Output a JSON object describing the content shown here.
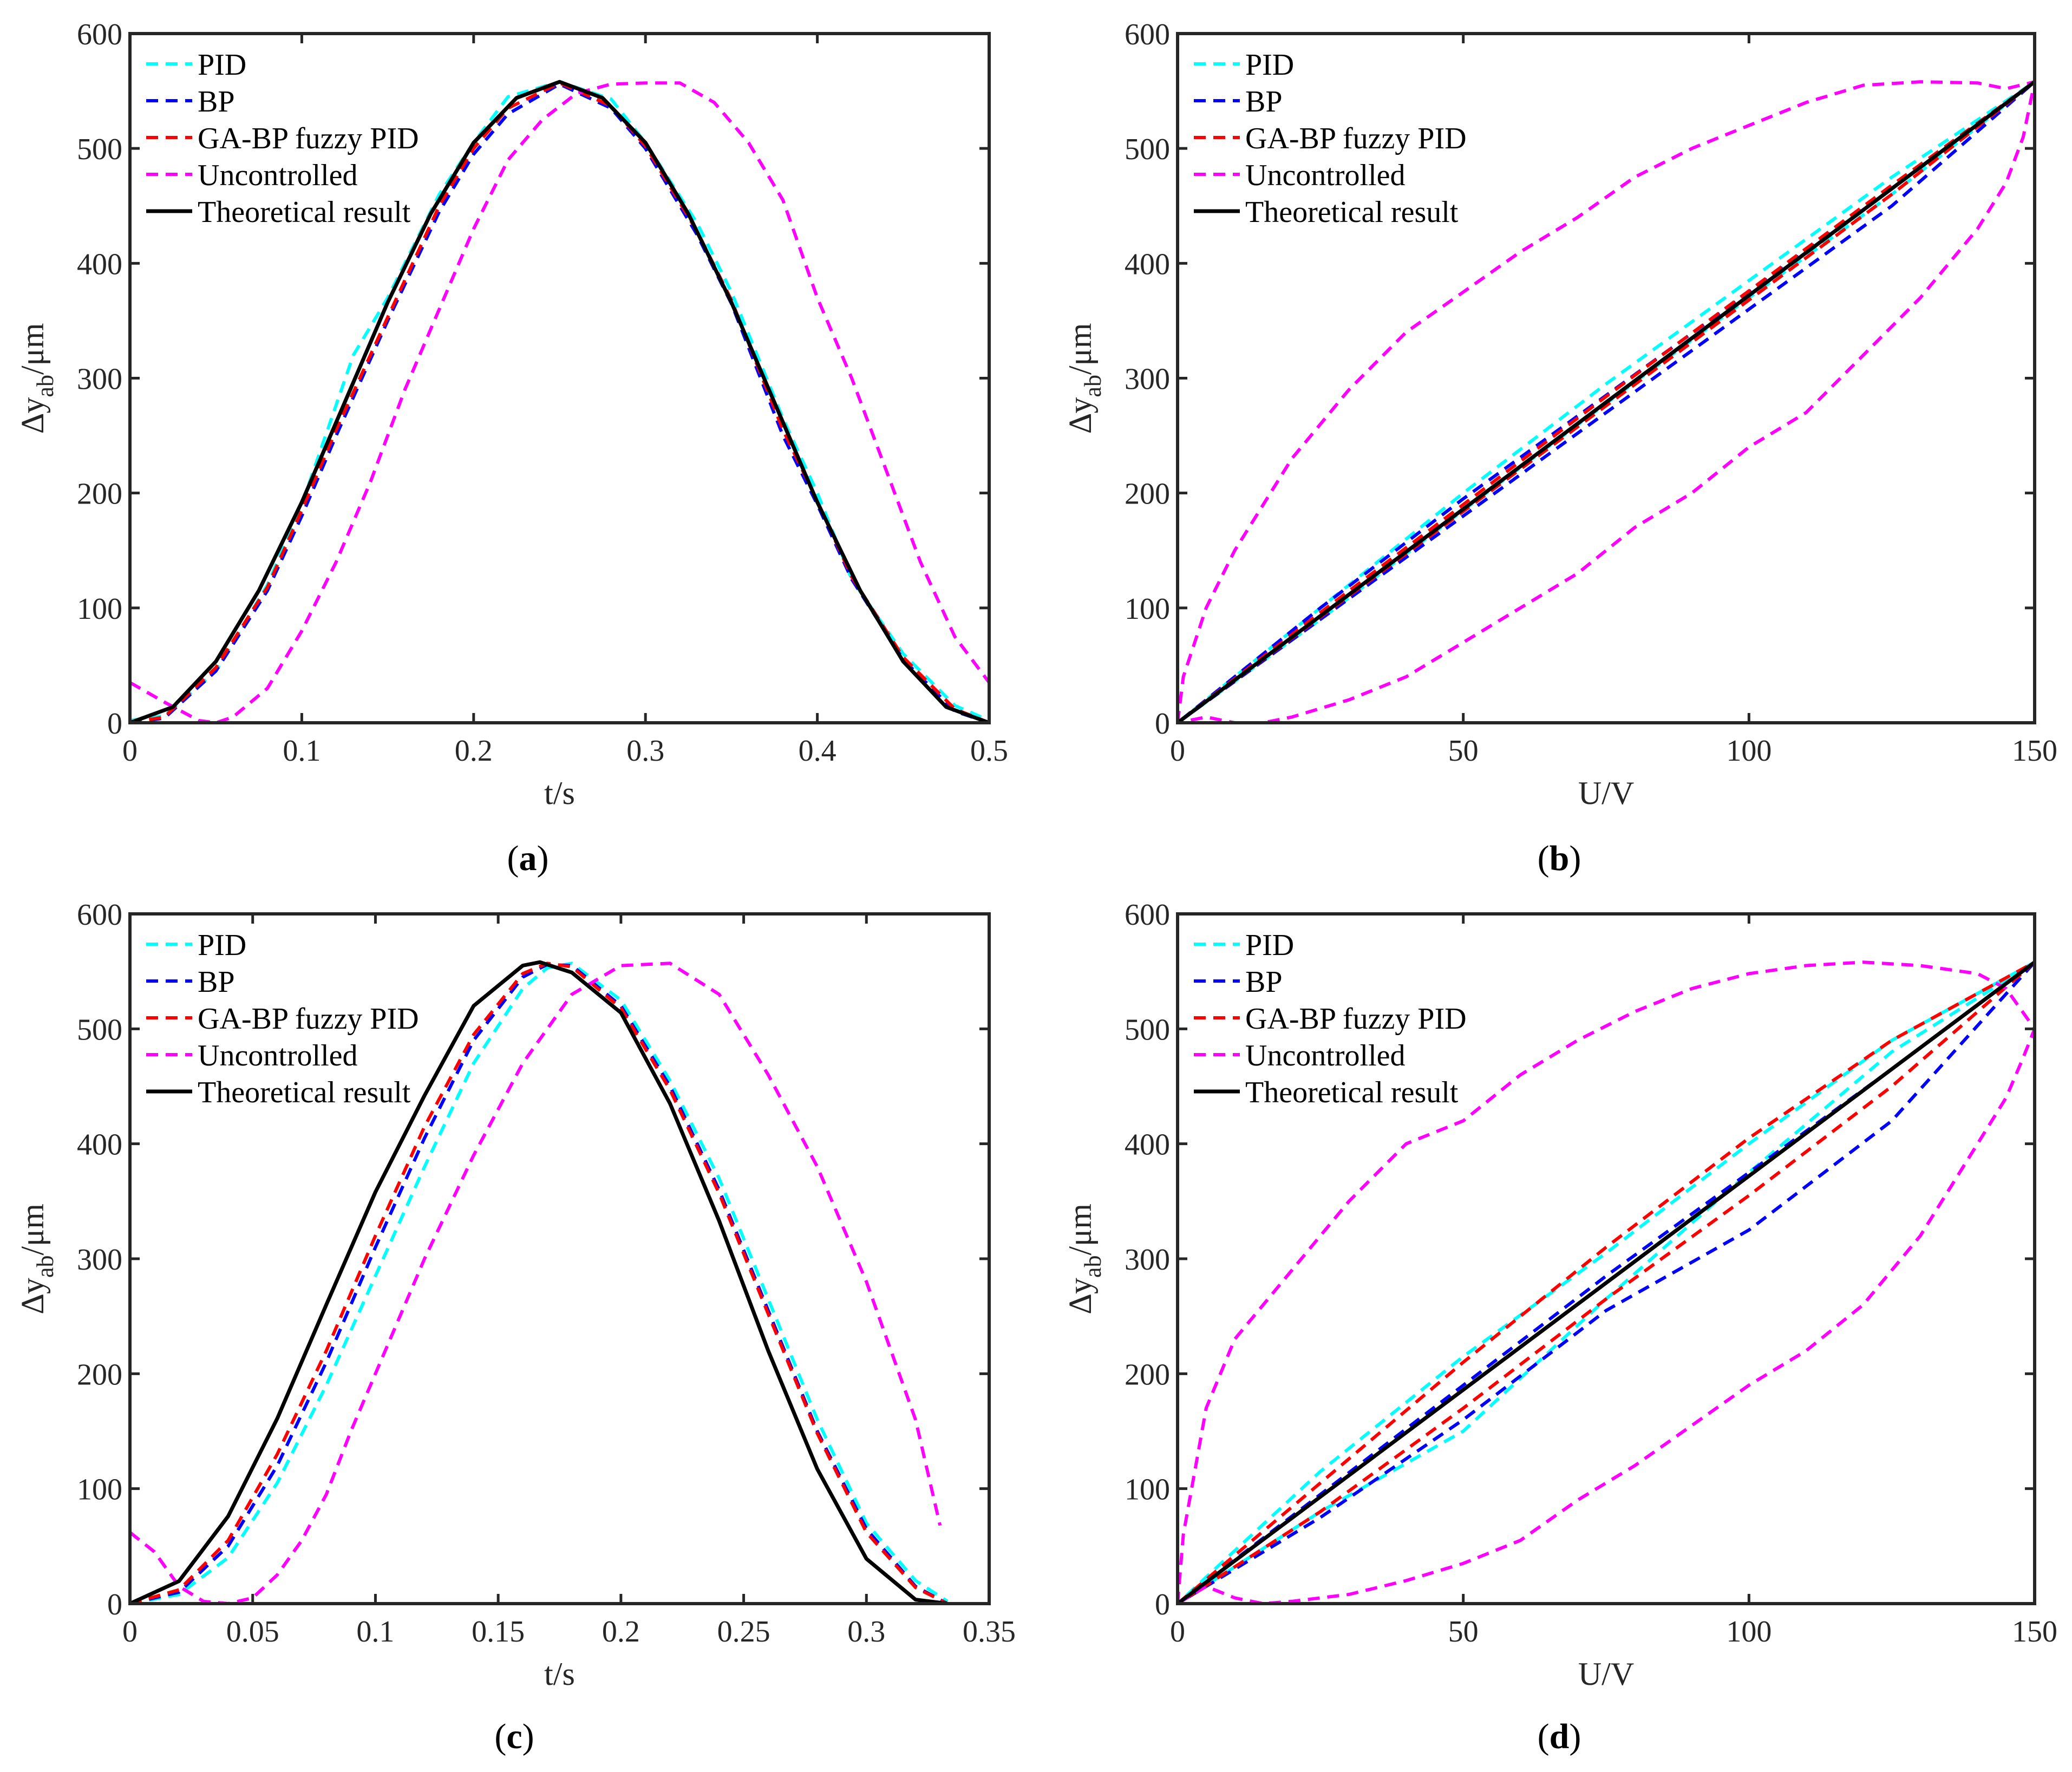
{
  "figure": {
    "panel_labels": [
      {
        "open": "(",
        "letter": "a",
        "close": ")"
      },
      {
        "open": "(",
        "letter": "b",
        "close": ")"
      },
      {
        "open": "(",
        "letter": "c",
        "close": ")"
      },
      {
        "open": "(",
        "letter": "d",
        "close": ")"
      }
    ]
  },
  "colors": {
    "pid": "#00FFFF",
    "bp": "#0000FF",
    "gabp": "#FF0000",
    "uncontrolled": "#FF00FF",
    "theoretical": "#000000"
  },
  "chart_data": [
    {
      "type": "line",
      "panel": "a",
      "xlabel": "t/s",
      "ylabel": {
        "prefix": "∆y",
        "sub": "ab",
        "suffix": "/μm"
      },
      "xlim": [
        0,
        0.5
      ],
      "ylim": [
        0,
        600
      ],
      "xticks": [
        0,
        0.1,
        0.2,
        0.3,
        0.4,
        0.5
      ],
      "xtick_labels": [
        "0",
        "0.1",
        "0.2",
        "0.3",
        "0.4",
        "0.5"
      ],
      "yticks": [
        0,
        100,
        200,
        300,
        400,
        500,
        600
      ],
      "ytick_labels": [
        "0",
        "100",
        "200",
        "300",
        "400",
        "500",
        "600"
      ],
      "legend": "top-left",
      "series": [
        {
          "name": "PID",
          "color_key": "pid",
          "style": "dashed",
          "x": [
            0,
            0.02,
            0.05,
            0.08,
            0.1,
            0.13,
            0.15,
            0.18,
            0.2,
            0.22,
            0.25,
            0.28,
            0.3,
            0.33,
            0.35,
            0.38,
            0.4,
            0.42,
            0.45,
            0.48,
            0.5
          ],
          "y": [
            2,
            6,
            45,
            120,
            190,
            320,
            370,
            460,
            505,
            545,
            558,
            543,
            505,
            435,
            375,
            265,
            200,
            125,
            60,
            15,
            2
          ]
        },
        {
          "name": "BP",
          "color_key": "bp",
          "style": "dashed",
          "x": [
            0,
            0.02,
            0.05,
            0.08,
            0.1,
            0.12,
            0.15,
            0.18,
            0.2,
            0.22,
            0.25,
            0.28,
            0.3,
            0.33,
            0.35,
            0.38,
            0.4,
            0.42,
            0.45,
            0.48,
            0.5
          ],
          "y": [
            0,
            4,
            45,
            115,
            180,
            250,
            350,
            445,
            495,
            530,
            556,
            535,
            500,
            425,
            365,
            250,
            190,
            125,
            55,
            10,
            0
          ]
        },
        {
          "name": "GA-BP fuzzy PID",
          "color_key": "gabp",
          "style": "dashed",
          "x": [
            0,
            0.02,
            0.05,
            0.08,
            0.1,
            0.12,
            0.15,
            0.18,
            0.2,
            0.22,
            0.25,
            0.28,
            0.3,
            0.33,
            0.35,
            0.38,
            0.4,
            0.42,
            0.45,
            0.48,
            0.5
          ],
          "y": [
            0,
            5,
            48,
            118,
            185,
            255,
            353,
            450,
            500,
            535,
            557,
            537,
            502,
            428,
            368,
            255,
            193,
            127,
            57,
            12,
            0
          ]
        },
        {
          "name": "Uncontrolled",
          "color_key": "uncontrolled",
          "style": "dashed",
          "x": [
            0,
            0.02,
            0.04,
            0.05,
            0.06,
            0.08,
            0.1,
            0.12,
            0.14,
            0.16,
            0.18,
            0.2,
            0.22,
            0.24,
            0.26,
            0.28,
            0.3,
            0.32,
            0.34,
            0.36,
            0.38,
            0.4,
            0.42,
            0.44,
            0.46,
            0.48,
            0.5
          ],
          "y": [
            35,
            18,
            2,
            0,
            5,
            30,
            80,
            140,
            210,
            290,
            360,
            430,
            490,
            525,
            548,
            556,
            557,
            557,
            540,
            505,
            455,
            370,
            300,
            220,
            140,
            75,
            35
          ]
        },
        {
          "name": "Theoretical result",
          "color_key": "theoretical",
          "style": "solid",
          "x": [
            0,
            0.025,
            0.05,
            0.075,
            0.1,
            0.125,
            0.15,
            0.175,
            0.2,
            0.225,
            0.25,
            0.275,
            0.3,
            0.325,
            0.35,
            0.375,
            0.4,
            0.425,
            0.45,
            0.475,
            0.5
          ],
          "y": [
            0,
            13.7,
            53.3,
            115,
            192,
            279,
            366,
            443,
            505,
            544,
            558,
            544,
            505,
            443,
            366,
            279,
            192,
            115,
            53.3,
            13.7,
            0
          ]
        }
      ]
    },
    {
      "type": "line",
      "panel": "b",
      "xlabel": "U/V",
      "ylabel": {
        "prefix": "∆y",
        "sub": "ab",
        "suffix": "/μm"
      },
      "xlim": [
        0,
        150
      ],
      "ylim": [
        0,
        600
      ],
      "xticks": [
        0,
        50,
        100,
        150
      ],
      "xtick_labels": [
        "0",
        "50",
        "100",
        "150"
      ],
      "yticks": [
        0,
        100,
        200,
        300,
        400,
        500,
        600
      ],
      "ytick_labels": [
        "0",
        "100",
        "200",
        "300",
        "400",
        "500",
        "600"
      ],
      "legend": "top-left",
      "series": [
        {
          "name": "PID",
          "color_key": "pid",
          "style": "dashed",
          "x": [
            0,
            25,
            50,
            75,
            100,
            125,
            150,
            125,
            100,
            75,
            50,
            25,
            0
          ],
          "y": [
            0,
            100,
            200,
            295,
            385,
            475,
            558,
            460,
            370,
            278,
            185,
            90,
            0
          ]
        },
        {
          "name": "BP",
          "color_key": "bp",
          "style": "dashed",
          "x": [
            0,
            25,
            50,
            75,
            100,
            125,
            150,
            125,
            100,
            75,
            50,
            25,
            0
          ],
          "y": [
            0,
            90,
            180,
            270,
            360,
            450,
            558,
            465,
            375,
            285,
            195,
            100,
            0
          ]
        },
        {
          "name": "GA-BP fuzzy PID",
          "color_key": "gabp",
          "style": "dashed",
          "x": [
            0,
            25,
            50,
            75,
            100,
            125,
            150,
            125,
            100,
            75,
            50,
            25,
            0
          ],
          "y": [
            0,
            92,
            184,
            276,
            368,
            460,
            558,
            468,
            376,
            284,
            190,
            96,
            0
          ]
        },
        {
          "name": "Uncontrolled",
          "color_key": "uncontrolled",
          "style": "dashed",
          "x": [
            0,
            1,
            5,
            10,
            20,
            30,
            40,
            50,
            60,
            70,
            80,
            90,
            100,
            110,
            120,
            130,
            140,
            145,
            150,
            148,
            145,
            140,
            130,
            120,
            110,
            100,
            90,
            80,
            70,
            60,
            50,
            40,
            30,
            20,
            15,
            10,
            5,
            0
          ],
          "y": [
            0,
            40,
            100,
            150,
            230,
            290,
            340,
            375,
            410,
            440,
            475,
            500,
            520,
            540,
            555,
            558,
            557,
            552,
            558,
            510,
            470,
            430,
            370,
            320,
            270,
            240,
            200,
            170,
            130,
            100,
            70,
            40,
            20,
            5,
            0,
            0,
            5,
            0
          ]
        },
        {
          "name": "Theoretical result",
          "color_key": "theoretical",
          "style": "solid",
          "x": [
            0,
            150
          ],
          "y": [
            0,
            558
          ]
        }
      ]
    },
    {
      "type": "line",
      "panel": "c",
      "xlabel": "t/s",
      "ylabel": {
        "prefix": "∆y",
        "sub": "ab",
        "suffix": "/μm"
      },
      "xlim": [
        0,
        0.35
      ],
      "ylim": [
        0,
        600
      ],
      "xticks": [
        0,
        0.05,
        0.1,
        0.15,
        0.2,
        0.25,
        0.3,
        0.35
      ],
      "xtick_labels": [
        "0",
        "0.05",
        "0.1",
        "0.15",
        "0.2",
        "0.25",
        "0.3",
        "0.35"
      ],
      "yticks": [
        0,
        100,
        200,
        300,
        400,
        500,
        600
      ],
      "ytick_labels": [
        "0",
        "100",
        "200",
        "300",
        "400",
        "500",
        "600"
      ],
      "legend": "top-left",
      "series": [
        {
          "name": "PID",
          "color_key": "pid",
          "style": "dashed",
          "x": [
            0,
            0.02,
            0.04,
            0.06,
            0.08,
            0.1,
            0.12,
            0.14,
            0.16,
            0.17,
            0.18,
            0.2,
            0.22,
            0.24,
            0.26,
            0.28,
            0.3,
            0.32,
            0.333
          ],
          "y": [
            0,
            8,
            40,
            105,
            190,
            285,
            380,
            470,
            535,
            553,
            557,
            525,
            455,
            370,
            265,
            160,
            70,
            20,
            2
          ]
        },
        {
          "name": "BP",
          "color_key": "bp",
          "style": "dashed",
          "x": [
            0,
            0.02,
            0.04,
            0.06,
            0.08,
            0.1,
            0.12,
            0.14,
            0.16,
            0.17,
            0.18,
            0.2,
            0.22,
            0.24,
            0.26,
            0.28,
            0.3,
            0.32,
            0.333
          ],
          "y": [
            0,
            10,
            50,
            120,
            210,
            310,
            405,
            490,
            545,
            556,
            555,
            520,
            450,
            360,
            255,
            150,
            65,
            15,
            0
          ]
        },
        {
          "name": "GA-BP fuzzy PID",
          "color_key": "gabp",
          "style": "dashed",
          "x": [
            0,
            0.02,
            0.04,
            0.06,
            0.08,
            0.1,
            0.12,
            0.14,
            0.16,
            0.17,
            0.18,
            0.2,
            0.22,
            0.24,
            0.26,
            0.28,
            0.3,
            0.32,
            0.333
          ],
          "y": [
            0,
            12,
            55,
            130,
            220,
            320,
            415,
            495,
            548,
            557,
            554,
            518,
            447,
            357,
            252,
            148,
            62,
            14,
            0
          ]
        },
        {
          "name": "Uncontrolled",
          "color_key": "uncontrolled",
          "style": "dashed",
          "x": [
            0,
            0.01,
            0.02,
            0.03,
            0.04,
            0.05,
            0.06,
            0.07,
            0.08,
            0.09,
            0.1,
            0.12,
            0.14,
            0.16,
            0.18,
            0.2,
            0.22,
            0.24,
            0.26,
            0.28,
            0.3,
            0.32,
            0.33
          ],
          "y": [
            62,
            45,
            15,
            2,
            0,
            5,
            25,
            55,
            95,
            150,
            200,
            300,
            390,
            470,
            530,
            555,
            557,
            530,
            460,
            380,
            280,
            160,
            68
          ]
        },
        {
          "name": "Theoretical result",
          "color_key": "theoretical",
          "style": "solid",
          "x": [
            0,
            0.02,
            0.04,
            0.06,
            0.08,
            0.1,
            0.12,
            0.14,
            0.16,
            0.167,
            0.18,
            0.2,
            0.22,
            0.24,
            0.26,
            0.28,
            0.3,
            0.32,
            0.333
          ],
          "y": [
            0,
            19.6,
            76,
            161,
            260,
            358,
            442,
            520,
            555,
            558,
            549,
            514,
            435,
            333,
            220,
            117,
            39,
            3.5,
            0
          ]
        }
      ]
    },
    {
      "type": "line",
      "panel": "d",
      "xlabel": "U/V",
      "ylabel": {
        "prefix": "∆y",
        "sub": "ab",
        "suffix": "/μm"
      },
      "xlim": [
        0,
        150
      ],
      "ylim": [
        0,
        600
      ],
      "xticks": [
        0,
        50,
        100,
        150
      ],
      "xtick_labels": [
        "0",
        "50",
        "100",
        "150"
      ],
      "yticks": [
        0,
        100,
        200,
        300,
        400,
        500,
        600
      ],
      "ytick_labels": [
        "0",
        "100",
        "200",
        "300",
        "400",
        "500",
        "600"
      ],
      "legend": "top-left",
      "series": [
        {
          "name": "PID",
          "color_key": "pid",
          "style": "dashed",
          "x": [
            0,
            25,
            50,
            75,
            100,
            125,
            150,
            125,
            100,
            75,
            50,
            25,
            0
          ],
          "y": [
            0,
            80,
            150,
            265,
            375,
            480,
            558,
            490,
            400,
            305,
            215,
            115,
            0
          ]
        },
        {
          "name": "BP",
          "color_key": "bp",
          "style": "dashed",
          "x": [
            0,
            25,
            50,
            75,
            100,
            125,
            150,
            125,
            100,
            75,
            50,
            25,
            0
          ],
          "y": [
            0,
            95,
            190,
            285,
            375,
            465,
            558,
            420,
            325,
            255,
            160,
            75,
            0
          ]
        },
        {
          "name": "GA-BP fuzzy PID",
          "color_key": "gabp",
          "style": "dashed",
          "x": [
            0,
            25,
            50,
            75,
            100,
            125,
            150,
            125,
            100,
            75,
            50,
            25,
            0
          ],
          "y": [
            0,
            105,
            210,
            310,
            405,
            490,
            558,
            450,
            355,
            265,
            170,
            80,
            0
          ]
        },
        {
          "name": "Uncontrolled",
          "color_key": "uncontrolled",
          "style": "dashed",
          "x": [
            0,
            1,
            5,
            10,
            20,
            30,
            40,
            50,
            60,
            70,
            80,
            90,
            100,
            110,
            120,
            130,
            140,
            145,
            150,
            148,
            145,
            140,
            130,
            120,
            110,
            100,
            90,
            80,
            70,
            60,
            50,
            40,
            30,
            20,
            15,
            10,
            5,
            0
          ],
          "y": [
            0,
            60,
            170,
            230,
            290,
            350,
            400,
            420,
            460,
            490,
            515,
            535,
            548,
            555,
            558,
            555,
            548,
            535,
            500,
            475,
            440,
            400,
            320,
            260,
            220,
            190,
            155,
            120,
            90,
            55,
            35,
            20,
            8,
            2,
            0,
            5,
            15,
            0
          ]
        },
        {
          "name": "Theoretical result",
          "color_key": "theoretical",
          "style": "solid",
          "x": [
            0,
            150
          ],
          "y": [
            0,
            558
          ]
        }
      ]
    }
  ]
}
